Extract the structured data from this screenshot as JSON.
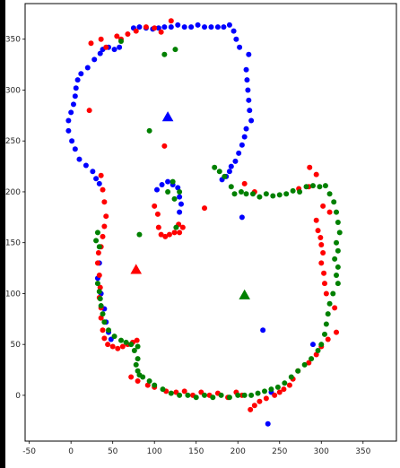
{
  "colors": {
    "blue": "#0000ff",
    "red": "#ff0000",
    "green": "#008000",
    "frame": "#000000"
  },
  "chart_data": {
    "type": "scatter",
    "xlim": [
      -55,
      390
    ],
    "ylim": [
      -45,
      385
    ],
    "x_ticks": [
      -50,
      0,
      50,
      100,
      150,
      200,
      250,
      300,
      350
    ],
    "y_ticks": [
      0,
      50,
      100,
      150,
      200,
      250,
      300,
      350
    ],
    "grid": false,
    "legend": "none",
    "series": [
      {
        "color": "blue",
        "marker": "circle",
        "points": [
          [
            75,
            361
          ],
          [
            82,
            362
          ],
          [
            90,
            361
          ],
          [
            98,
            360
          ],
          [
            105,
            361
          ],
          [
            112,
            362
          ],
          [
            120,
            362
          ],
          [
            128,
            364
          ],
          [
            136,
            362
          ],
          [
            144,
            362
          ],
          [
            152,
            364
          ],
          [
            160,
            362
          ],
          [
            168,
            362
          ],
          [
            176,
            362
          ],
          [
            183,
            362
          ],
          [
            190,
            364
          ],
          [
            195,
            358
          ],
          [
            198,
            350
          ],
          [
            202,
            342
          ],
          [
            213,
            335
          ],
          [
            210,
            320
          ],
          [
            211,
            310
          ],
          [
            212,
            300
          ],
          [
            213,
            290
          ],
          [
            214,
            280
          ],
          [
            216,
            270
          ],
          [
            210,
            262
          ],
          [
            208,
            254
          ],
          [
            205,
            246
          ],
          [
            201,
            238
          ],
          [
            197,
            230
          ],
          [
            192,
            225
          ],
          [
            190,
            220
          ],
          [
            186,
            215
          ],
          [
            181,
            212
          ],
          [
            58,
            342
          ],
          [
            52,
            340
          ],
          [
            45,
            342
          ],
          [
            38,
            340
          ],
          [
            35,
            336
          ],
          [
            28,
            330
          ],
          [
            20,
            322
          ],
          [
            12,
            316
          ],
          [
            8,
            310
          ],
          [
            6,
            302
          ],
          [
            5,
            294
          ],
          [
            3,
            286
          ],
          [
            0,
            278
          ],
          [
            -3,
            270
          ],
          [
            -3,
            260
          ],
          [
            1,
            250
          ],
          [
            5,
            242
          ],
          [
            10,
            232
          ],
          [
            18,
            226
          ],
          [
            26,
            220
          ],
          [
            30,
            213
          ],
          [
            34,
            208
          ],
          [
            103,
            202
          ],
          [
            109,
            207
          ],
          [
            116,
            210
          ],
          [
            122,
            207
          ],
          [
            128,
            204
          ],
          [
            130,
            195
          ],
          [
            132,
            188
          ],
          [
            130,
            180
          ],
          [
            34,
            130
          ],
          [
            32,
            115
          ],
          [
            36,
            100
          ],
          [
            40,
            85
          ],
          [
            42,
            72
          ],
          [
            45,
            62
          ],
          [
            48,
            55
          ],
          [
            205,
            175
          ],
          [
            230,
            64
          ],
          [
            290,
            50
          ],
          [
            240,
            3
          ],
          [
            236,
            -28
          ]
        ]
      },
      {
        "color": "red",
        "marker": "circle",
        "points": [
          [
            24,
            346
          ],
          [
            36,
            350
          ],
          [
            42,
            342
          ],
          [
            55,
            353
          ],
          [
            60,
            350
          ],
          [
            68,
            355
          ],
          [
            78,
            358
          ],
          [
            90,
            362
          ],
          [
            100,
            361
          ],
          [
            108,
            357
          ],
          [
            120,
            368
          ],
          [
            22,
            280
          ],
          [
            112,
            245
          ],
          [
            160,
            184
          ],
          [
            208,
            208
          ],
          [
            220,
            200
          ],
          [
            273,
            203
          ],
          [
            286,
            224
          ],
          [
            294,
            217
          ],
          [
            285,
            205
          ],
          [
            302,
            186
          ],
          [
            310,
            180
          ],
          [
            36,
            216
          ],
          [
            38,
            202
          ],
          [
            40,
            190
          ],
          [
            42,
            176
          ],
          [
            40,
            166
          ],
          [
            38,
            156
          ],
          [
            36,
            146
          ],
          [
            33,
            140
          ],
          [
            32,
            130
          ],
          [
            34,
            118
          ],
          [
            35,
            106
          ],
          [
            34,
            96
          ],
          [
            36,
            86
          ],
          [
            36,
            76
          ],
          [
            38,
            64
          ],
          [
            40,
            56
          ],
          [
            44,
            50
          ],
          [
            50,
            48
          ],
          [
            56,
            46
          ],
          [
            62,
            48
          ],
          [
            68,
            50
          ],
          [
            74,
            52
          ],
          [
            79,
            54
          ],
          [
            100,
            186
          ],
          [
            104,
            178
          ],
          [
            105,
            165
          ],
          [
            108,
            158
          ],
          [
            113,
            156
          ],
          [
            118,
            158
          ],
          [
            124,
            160
          ],
          [
            130,
            160
          ],
          [
            134,
            165
          ],
          [
            129,
            168
          ],
          [
            294,
            172
          ],
          [
            296,
            162
          ],
          [
            299,
            155
          ],
          [
            300,
            148
          ],
          [
            302,
            140
          ],
          [
            300,
            130
          ],
          [
            303,
            120
          ],
          [
            304,
            110
          ],
          [
            306,
            100
          ],
          [
            316,
            86
          ],
          [
            318,
            62
          ],
          [
            308,
            55
          ],
          [
            300,
            48
          ],
          [
            294,
            40
          ],
          [
            285,
            32
          ],
          [
            272,
            24
          ],
          [
            266,
            16
          ],
          [
            262,
            10
          ],
          [
            255,
            6
          ],
          [
            250,
            3
          ],
          [
            244,
            0
          ],
          [
            234,
            -3
          ],
          [
            226,
            -6
          ],
          [
            220,
            -10
          ],
          [
            215,
            -14
          ],
          [
            205,
            0
          ],
          [
            198,
            3
          ],
          [
            188,
            -2
          ],
          [
            176,
            2
          ],
          [
            166,
            0
          ],
          [
            156,
            3
          ],
          [
            146,
            0
          ],
          [
            136,
            4
          ],
          [
            126,
            3
          ],
          [
            114,
            4
          ],
          [
            100,
            8
          ],
          [
            92,
            10
          ],
          [
            80,
            14
          ],
          [
            72,
            18
          ]
        ]
      },
      {
        "color": "green",
        "marker": "circle",
        "points": [
          [
            112,
            335
          ],
          [
            125,
            340
          ],
          [
            60,
            348
          ],
          [
            94,
            260
          ],
          [
            126,
            165
          ],
          [
            82,
            158
          ],
          [
            124,
            193
          ],
          [
            116,
            200
          ],
          [
            122,
            210
          ],
          [
            130,
            200
          ],
          [
            30,
            152
          ],
          [
            32,
            160
          ],
          [
            34,
            146
          ],
          [
            32,
            110
          ],
          [
            34,
            102
          ],
          [
            35,
            95
          ],
          [
            36,
            88
          ],
          [
            38,
            80
          ],
          [
            40,
            72
          ],
          [
            45,
            64
          ],
          [
            52,
            58
          ],
          [
            60,
            54
          ],
          [
            66,
            52
          ],
          [
            72,
            50
          ],
          [
            80,
            48
          ],
          [
            172,
            224
          ],
          [
            178,
            220
          ],
          [
            184,
            215
          ],
          [
            192,
            205
          ],
          [
            196,
            198
          ],
          [
            204,
            200
          ],
          [
            210,
            198
          ],
          [
            218,
            198
          ],
          [
            226,
            195
          ],
          [
            234,
            198
          ],
          [
            242,
            196
          ],
          [
            250,
            197
          ],
          [
            258,
            198
          ],
          [
            266,
            201
          ],
          [
            274,
            200
          ],
          [
            282,
            205
          ],
          [
            290,
            206
          ],
          [
            298,
            205
          ],
          [
            305,
            206
          ],
          [
            310,
            198
          ],
          [
            315,
            190
          ],
          [
            318,
            180
          ],
          [
            320,
            170
          ],
          [
            322,
            160
          ],
          [
            318,
            150
          ],
          [
            320,
            142
          ],
          [
            316,
            134
          ],
          [
            320,
            126
          ],
          [
            318,
            118
          ],
          [
            320,
            110
          ],
          [
            314,
            100
          ],
          [
            310,
            90
          ],
          [
            308,
            80
          ],
          [
            306,
            70
          ],
          [
            304,
            60
          ],
          [
            300,
            50
          ],
          [
            296,
            44
          ],
          [
            288,
            36
          ],
          [
            280,
            30
          ],
          [
            272,
            24
          ],
          [
            264,
            18
          ],
          [
            256,
            12
          ],
          [
            248,
            8
          ],
          [
            240,
            6
          ],
          [
            232,
            4
          ],
          [
            224,
            2
          ],
          [
            216,
            0
          ],
          [
            208,
            0
          ],
          [
            200,
            0
          ],
          [
            190,
            -2
          ],
          [
            180,
            0
          ],
          [
            170,
            -2
          ],
          [
            160,
            0
          ],
          [
            150,
            -2
          ],
          [
            140,
            0
          ],
          [
            130,
            0
          ],
          [
            120,
            2
          ],
          [
            110,
            6
          ],
          [
            100,
            10
          ],
          [
            94,
            14
          ],
          [
            86,
            18
          ],
          [
            82,
            20
          ],
          [
            80,
            24
          ],
          [
            78,
            30
          ],
          [
            80,
            36
          ],
          [
            76,
            44
          ],
          [
            72,
            50
          ]
        ]
      },
      {
        "color": "blue",
        "marker": "triangle",
        "points": [
          [
            116,
            273
          ]
        ]
      },
      {
        "color": "red",
        "marker": "triangle",
        "points": [
          [
            78,
            123
          ]
        ]
      },
      {
        "color": "green",
        "marker": "triangle",
        "points": [
          [
            208,
            98
          ]
        ]
      }
    ]
  }
}
